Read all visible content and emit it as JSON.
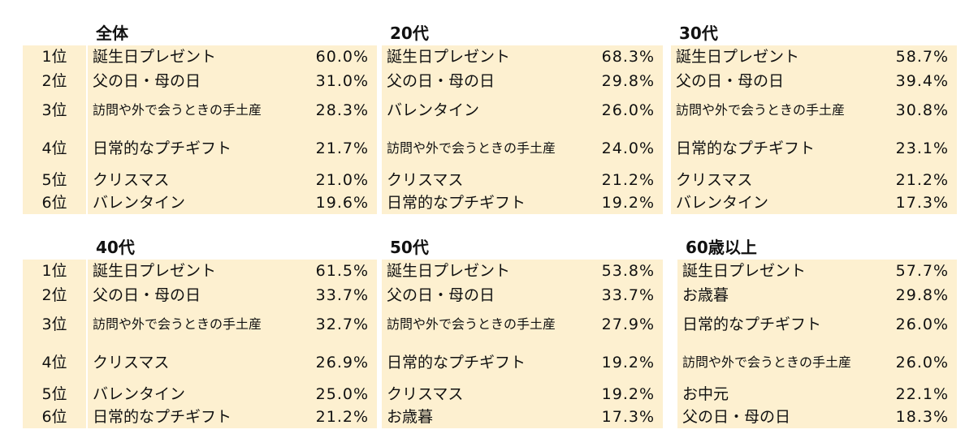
{
  "ranks": [
    "1位",
    "2位",
    "3位",
    "4位",
    "5位",
    "6位"
  ],
  "panels": [
    {
      "title": "全体",
      "rows": [
        {
          "item": "誕生日プレゼント",
          "pct": "60.0%"
        },
        {
          "item": "父の日・母の日",
          "pct": "31.0%"
        },
        {
          "item": "訪問や外で会うときの手土産",
          "pct": "28.3%"
        },
        {
          "item": "日常的なプチギフト",
          "pct": "21.7%"
        },
        {
          "item": "クリスマス",
          "pct": "21.0%"
        },
        {
          "item": "バレンタイン",
          "pct": "19.6%"
        }
      ]
    },
    {
      "title": "20代",
      "rows": [
        {
          "item": "誕生日プレゼント",
          "pct": "68.3%"
        },
        {
          "item": "父の日・母の日",
          "pct": "29.8%"
        },
        {
          "item": "バレンタイン",
          "pct": "26.0%"
        },
        {
          "item": "訪問や外で会うときの手土産",
          "pct": "24.0%"
        },
        {
          "item": "クリスマス",
          "pct": "21.2%"
        },
        {
          "item": "日常的なプチギフト",
          "pct": "19.2%"
        }
      ]
    },
    {
      "title": "30代",
      "rows": [
        {
          "item": "誕生日プレゼント",
          "pct": "58.7%"
        },
        {
          "item": "父の日・母の日",
          "pct": "39.4%"
        },
        {
          "item": "訪問や外で会うときの手土産",
          "pct": "30.8%"
        },
        {
          "item": "日常的なプチギフト",
          "pct": "23.1%"
        },
        {
          "item": "クリスマス",
          "pct": "21.2%"
        },
        {
          "item": "バレンタイン",
          "pct": "17.3%"
        }
      ]
    },
    {
      "title": "40代",
      "rows": [
        {
          "item": "誕生日プレゼント",
          "pct": "61.5%"
        },
        {
          "item": "父の日・母の日",
          "pct": "33.7%"
        },
        {
          "item": "訪問や外で会うときの手土産",
          "pct": "32.7%"
        },
        {
          "item": "クリスマス",
          "pct": "26.9%"
        },
        {
          "item": "バレンタイン",
          "pct": "25.0%"
        },
        {
          "item": "日常的なプチギフト",
          "pct": "21.2%"
        }
      ]
    },
    {
      "title": "50代",
      "rows": [
        {
          "item": "誕生日プレゼント",
          "pct": "53.8%"
        },
        {
          "item": "父の日・母の日",
          "pct": "33.7%"
        },
        {
          "item": "訪問や外で会うときの手土産",
          "pct": "27.9%"
        },
        {
          "item": "日常的なプチギフト",
          "pct": "19.2%"
        },
        {
          "item": "クリスマス",
          "pct": "19.2%"
        },
        {
          "item": "お歳暮",
          "pct": "17.3%"
        }
      ]
    },
    {
      "title": "60歳以上",
      "rows": [
        {
          "item": "誕生日プレゼント",
          "pct": "57.7%"
        },
        {
          "item": "お歳暮",
          "pct": "29.8%"
        },
        {
          "item": "日常的なプチギフト",
          "pct": "26.0%"
        },
        {
          "item": "訪問や外で会うときの手土産",
          "pct": "26.0%"
        },
        {
          "item": "お中元",
          "pct": "22.1%"
        },
        {
          "item": "父の日・母の日",
          "pct": "18.3%"
        }
      ]
    }
  ]
}
